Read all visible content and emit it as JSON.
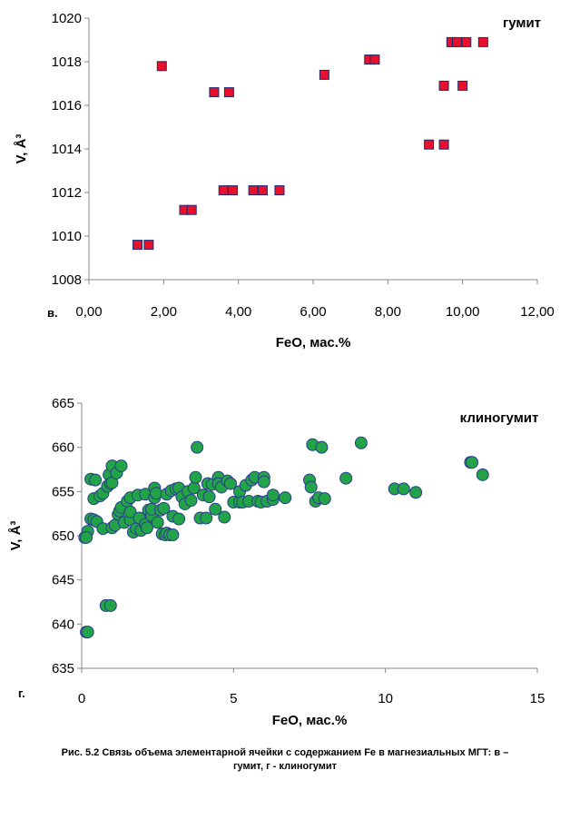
{
  "chart_data": [
    {
      "type": "scatter",
      "panel_label": "в.",
      "xlabel": "FeO, мас.%",
      "ylabel": "V, Å³",
      "xlim": [
        0,
        12
      ],
      "ylim": [
        1008,
        1020
      ],
      "xticks": [
        0,
        2,
        4,
        6,
        8,
        10,
        12
      ],
      "xtick_labels": [
        "0,00",
        "2,00",
        "4,00",
        "6,00",
        "8,00",
        "10,00",
        "12,00"
      ],
      "yticks": [
        1008,
        1010,
        1012,
        1014,
        1016,
        1018,
        1020
      ],
      "ytick_labels": [
        "1008",
        "1010",
        "1012",
        "1014",
        "1016",
        "1018",
        "1020"
      ],
      "grid": false,
      "series": [
        {
          "name": "гумит",
          "marker": "square",
          "color": "#e8102a",
          "edge_color": "#1f2a6e",
          "points": [
            [
              1.3,
              1009.6
            ],
            [
              1.6,
              1009.6
            ],
            [
              1.95,
              1017.8
            ],
            [
              2.55,
              1011.2
            ],
            [
              2.75,
              1011.2
            ],
            [
              3.35,
              1016.6
            ],
            [
              3.75,
              1016.6
            ],
            [
              3.6,
              1012.1
            ],
            [
              3.85,
              1012.1
            ],
            [
              4.4,
              1012.1
            ],
            [
              4.65,
              1012.1
            ],
            [
              5.1,
              1012.1
            ],
            [
              6.3,
              1017.4
            ],
            [
              7.5,
              1018.1
            ],
            [
              7.65,
              1018.1
            ],
            [
              9.1,
              1014.2
            ],
            [
              9.5,
              1014.2
            ],
            [
              9.5,
              1016.9
            ],
            [
              10.0,
              1016.9
            ],
            [
              9.7,
              1018.9
            ],
            [
              9.85,
              1018.9
            ],
            [
              10.1,
              1018.9
            ],
            [
              10.55,
              1018.9
            ]
          ]
        }
      ]
    },
    {
      "type": "scatter",
      "panel_label": "г.",
      "xlabel": "FeO, мас.%",
      "ylabel": "V, Å³",
      "xlim": [
        0,
        15
      ],
      "ylim": [
        635,
        665
      ],
      "xticks": [
        0,
        5,
        10,
        15
      ],
      "xtick_labels": [
        "0",
        "5",
        "10",
        "15"
      ],
      "yticks": [
        635,
        640,
        645,
        650,
        655,
        660,
        665
      ],
      "ytick_labels": [
        "635",
        "640",
        "645",
        "650",
        "655",
        "660",
        "665"
      ],
      "grid": false,
      "series": [
        {
          "name": "клиногумит",
          "marker": "circle",
          "color": "#22a348",
          "edge_color": "#2a3d8f",
          "points": [
            [
              0.15,
              639.1
            ],
            [
              0.2,
              639.1
            ],
            [
              0.8,
              642.1
            ],
            [
              0.95,
              642.1
            ],
            [
              0.1,
              649.8
            ],
            [
              0.2,
              650.5
            ],
            [
              0.15,
              649.8
            ],
            [
              0.3,
              651.9
            ],
            [
              0.4,
              651.8
            ],
            [
              0.5,
              651.6
            ],
            [
              0.3,
              656.4
            ],
            [
              0.45,
              656.3
            ],
            [
              0.4,
              654.2
            ],
            [
              0.6,
              654.5
            ],
            [
              0.7,
              654.8
            ],
            [
              0.7,
              650.8
            ],
            [
              0.85,
              655.6
            ],
            [
              0.9,
              656.9
            ],
            [
              0.95,
              655.9
            ],
            [
              1.0,
              656.0
            ],
            [
              1.0,
              650.9
            ],
            [
              1.1,
              651.2
            ],
            [
              1.0,
              657.9
            ],
            [
              1.15,
              657.1
            ],
            [
              1.2,
              652.4
            ],
            [
              1.25,
              652.8
            ],
            [
              1.3,
              653.2
            ],
            [
              1.3,
              657.9
            ],
            [
              1.4,
              651.5
            ],
            [
              1.5,
              653.9
            ],
            [
              1.6,
              651.8
            ],
            [
              1.6,
              652.7
            ],
            [
              1.6,
              654.3
            ],
            [
              1.7,
              650.4
            ],
            [
              1.8,
              650.8
            ],
            [
              1.85,
              654.6
            ],
            [
              1.9,
              652.0
            ],
            [
              1.95,
              650.6
            ],
            [
              2.1,
              651.3
            ],
            [
              2.1,
              654.7
            ],
            [
              2.15,
              650.9
            ],
            [
              2.2,
              652.9
            ],
            [
              2.3,
              652.3
            ],
            [
              2.3,
              653.0
            ],
            [
              2.4,
              655.4
            ],
            [
              2.4,
              654.3
            ],
            [
              2.45,
              654.8
            ],
            [
              2.5,
              651.5
            ],
            [
              2.6,
              652.9
            ],
            [
              2.65,
              650.2
            ],
            [
              2.7,
              653.1
            ],
            [
              2.75,
              650.1
            ],
            [
              2.8,
              654.7
            ],
            [
              2.8,
              650.3
            ],
            [
              2.9,
              650.1
            ],
            [
              2.95,
              655.1
            ],
            [
              3.0,
              650.1
            ],
            [
              3.0,
              652.2
            ],
            [
              3.1,
              655.3
            ],
            [
              3.2,
              651.9
            ],
            [
              3.2,
              655.4
            ],
            [
              3.3,
              654.4
            ],
            [
              3.4,
              653.6
            ],
            [
              3.5,
              655.0
            ],
            [
              3.6,
              654.0
            ],
            [
              3.7,
              655.4
            ],
            [
              3.75,
              656.6
            ],
            [
              3.8,
              660.0
            ],
            [
              3.9,
              652.0
            ],
            [
              4.0,
              654.6
            ],
            [
              4.1,
              652.0
            ],
            [
              4.15,
              655.9
            ],
            [
              4.2,
              654.4
            ],
            [
              4.3,
              655.8
            ],
            [
              4.4,
              653.0
            ],
            [
              4.5,
              656.6
            ],
            [
              4.5,
              655.9
            ],
            [
              4.6,
              655.5
            ],
            [
              4.7,
              652.1
            ],
            [
              4.8,
              656.2
            ],
            [
              4.9,
              655.9
            ],
            [
              5.0,
              653.8
            ],
            [
              5.2,
              653.8
            ],
            [
              5.2,
              655.0
            ],
            [
              5.3,
              653.8
            ],
            [
              5.4,
              655.7
            ],
            [
              5.5,
              653.9
            ],
            [
              5.6,
              656.3
            ],
            [
              5.7,
              656.6
            ],
            [
              5.8,
              653.9
            ],
            [
              5.9,
              653.8
            ],
            [
              6.0,
              656.6
            ],
            [
              6.0,
              656.1
            ],
            [
              6.1,
              653.9
            ],
            [
              6.3,
              654.1
            ],
            [
              6.3,
              654.6
            ],
            [
              6.7,
              654.3
            ],
            [
              7.5,
              656.3
            ],
            [
              7.55,
              655.5
            ],
            [
              7.6,
              660.3
            ],
            [
              7.7,
              653.9
            ],
            [
              7.8,
              654.3
            ],
            [
              7.9,
              660.0
            ],
            [
              8.0,
              654.2
            ],
            [
              8.7,
              656.5
            ],
            [
              9.2,
              660.5
            ],
            [
              10.3,
              655.3
            ],
            [
              10.6,
              655.3
            ],
            [
              11.0,
              654.9
            ],
            [
              12.8,
              658.3
            ],
            [
              12.85,
              658.3
            ],
            [
              13.2,
              656.9
            ]
          ]
        }
      ]
    }
  ],
  "caption_line1": "Рис. 5.2 Связь объема  элементарной  ячейки с содержанием Fe в магнезиальных  МГТ: в –",
  "caption_line2": "гумит, г - клиногумит"
}
